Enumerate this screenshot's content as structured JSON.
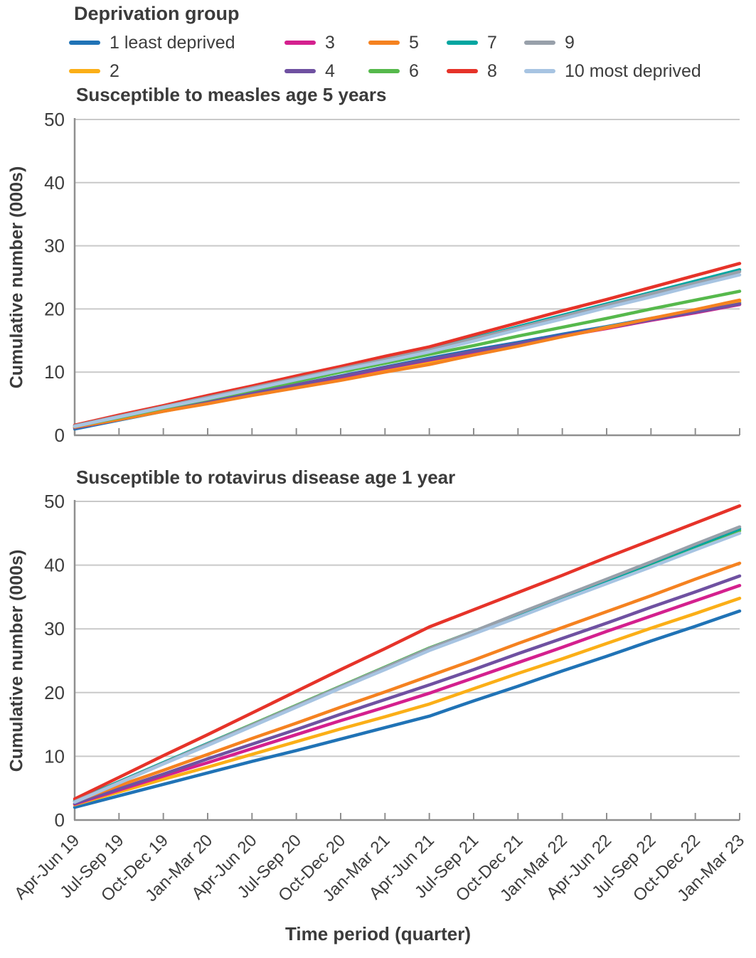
{
  "legend": {
    "title": "Deprivation group",
    "items": [
      {
        "label": "1 least deprived",
        "color": "#2073b6"
      },
      {
        "label": "2",
        "color": "#fbaf17"
      },
      {
        "label": "3",
        "color": "#d4208e"
      },
      {
        "label": "4",
        "color": "#6f51a1"
      },
      {
        "label": "5",
        "color": "#f58220"
      },
      {
        "label": "6",
        "color": "#56b94c"
      },
      {
        "label": "7",
        "color": "#00a5a0"
      },
      {
        "label": "8",
        "color": "#e63329"
      },
      {
        "label": "9",
        "color": "#98a0aa"
      },
      {
        "label": "10 most deprived",
        "color": "#a7c4e2"
      }
    ]
  },
  "x_axis_title": "Time period (quarter)",
  "styles": {
    "text_color": "#3d3d3d",
    "grid_color": "#c9c9c9",
    "axis_color": "#8f8f8f"
  },
  "chart_data": [
    {
      "type": "line",
      "title": "Susceptible to measles age 5 years",
      "ylabel": "Cumulative number (000s)",
      "xlabel": "Time period (quarter)",
      "ylim": [
        0,
        50
      ],
      "yticks": [
        0,
        10,
        20,
        30,
        40,
        50
      ],
      "grid": true,
      "legend_position": "top",
      "show_x_labels": false,
      "categories": [
        "Apr-Jun 19",
        "Jul-Sep 19",
        "Oct-Dec 19",
        "Jan-Mar 20",
        "Apr-Jun 20",
        "Jul-Sep 20",
        "Oct-Dec 20",
        "Jan-Mar 21",
        "Apr-Jun 21",
        "Jul-Sep 21",
        "Oct-Dec 21",
        "Jan-Mar 22",
        "Apr-Jun 22",
        "Jul-Sep 22",
        "Oct-Dec 22",
        "Jan-Mar 23"
      ],
      "series": [
        {
          "name": "1 least deprived",
          "color": "#2073b6",
          "values": [
            1.0,
            2.4,
            3.8,
            5.2,
            6.6,
            8.0,
            9.4,
            10.8,
            12.2,
            13.5,
            14.7,
            16.0,
            17.2,
            18.5,
            19.7,
            21.0
          ]
        },
        {
          "name": "2",
          "color": "#fbaf17",
          "values": [
            1.2,
            2.5,
            3.8,
            5.1,
            6.4,
            7.6,
            8.9,
            10.2,
            11.5,
            12.9,
            14.3,
            15.7,
            17.1,
            18.4,
            19.8,
            21.2
          ]
        },
        {
          "name": "3",
          "color": "#d4208e",
          "values": [
            1.2,
            2.5,
            3.9,
            5.2,
            6.6,
            7.9,
            9.2,
            10.6,
            11.9,
            13.2,
            14.4,
            15.7,
            16.9,
            18.2,
            19.4,
            20.7
          ]
        },
        {
          "name": "4",
          "color": "#6f51a1",
          "values": [
            1.2,
            2.6,
            3.9,
            5.3,
            6.6,
            8.0,
            9.3,
            10.7,
            12.0,
            13.3,
            14.5,
            15.8,
            17.0,
            18.3,
            19.5,
            20.8
          ]
        },
        {
          "name": "5",
          "color": "#f58220",
          "values": [
            1.3,
            2.5,
            3.8,
            5.0,
            6.3,
            7.5,
            8.7,
            10.0,
            11.2,
            12.7,
            14.1,
            15.6,
            17.0,
            18.5,
            19.9,
            21.4
          ]
        },
        {
          "name": "6",
          "color": "#56b94c",
          "values": [
            1.4,
            2.8,
            4.3,
            5.7,
            7.1,
            8.5,
            10.0,
            11.4,
            12.8,
            14.2,
            15.7,
            17.1,
            18.5,
            20.0,
            21.4,
            22.8
          ]
        },
        {
          "name": "7",
          "color": "#00a5a0",
          "values": [
            1.5,
            3.0,
            4.5,
            6.0,
            7.6,
            9.1,
            10.6,
            12.1,
            13.6,
            15.4,
            17.2,
            19.0,
            20.8,
            22.6,
            24.4,
            26.2
          ]
        },
        {
          "name": "8",
          "color": "#e63329",
          "values": [
            1.6,
            3.2,
            4.7,
            6.3,
            7.8,
            9.4,
            10.9,
            12.5,
            14.0,
            15.9,
            17.8,
            19.7,
            21.5,
            23.4,
            25.3,
            27.2
          ]
        },
        {
          "name": "9",
          "color": "#98a0aa",
          "values": [
            1.5,
            3.0,
            4.5,
            6.0,
            7.5,
            9.0,
            10.5,
            12.0,
            13.5,
            15.3,
            17.0,
            18.8,
            20.6,
            22.4,
            24.1,
            25.9
          ]
        },
        {
          "name": "10 most deprived",
          "color": "#a7c4e2",
          "values": [
            1.4,
            2.9,
            4.4,
            5.8,
            7.3,
            8.8,
            10.3,
            11.7,
            13.2,
            14.9,
            16.7,
            18.4,
            20.2,
            21.9,
            23.7,
            25.4
          ]
        }
      ]
    },
    {
      "type": "line",
      "title": "Susceptible to rotavirus disease age 1 year",
      "ylabel": "Cumulative number (000s)",
      "xlabel": "Time period (quarter)",
      "ylim": [
        0,
        50
      ],
      "yticks": [
        0,
        10,
        20,
        30,
        40,
        50
      ],
      "grid": true,
      "legend_position": "top",
      "show_x_labels": true,
      "categories": [
        "Apr-Jun 19",
        "Jul-Sep 19",
        "Oct-Dec 19",
        "Jan-Mar 20",
        "Apr-Jun 20",
        "Jul-Sep 20",
        "Oct-Dec 20",
        "Jan-Mar 21",
        "Apr-Jun 21",
        "Jul-Sep 21",
        "Oct-Dec 21",
        "Jan-Mar 22",
        "Apr-Jun 22",
        "Jul-Sep 22",
        "Oct-Dec 22",
        "Jan-Mar 23"
      ],
      "series": [
        {
          "name": "1 least deprived",
          "color": "#2073b6",
          "values": [
            2.0,
            3.8,
            5.6,
            7.4,
            9.2,
            10.9,
            12.7,
            14.5,
            16.3,
            18.7,
            21.0,
            23.4,
            25.7,
            28.1,
            30.4,
            32.8
          ]
        },
        {
          "name": "2",
          "color": "#fbaf17",
          "values": [
            2.4,
            4.4,
            6.4,
            8.3,
            10.3,
            12.3,
            14.3,
            16.2,
            18.2,
            20.6,
            23.0,
            25.3,
            27.7,
            30.1,
            32.4,
            34.8
          ]
        },
        {
          "name": "3",
          "color": "#d4208e",
          "values": [
            2.5,
            4.7,
            6.9,
            9.0,
            11.2,
            13.4,
            15.6,
            17.7,
            19.9,
            22.3,
            24.7,
            27.1,
            29.6,
            32.0,
            34.4,
            36.8
          ]
        },
        {
          "name": "4",
          "color": "#6f51a1",
          "values": [
            2.6,
            4.9,
            7.2,
            9.6,
            11.9,
            14.2,
            16.6,
            18.9,
            21.2,
            23.6,
            26.1,
            28.5,
            30.9,
            33.4,
            35.8,
            38.3
          ]
        },
        {
          "name": "5",
          "color": "#f58220",
          "values": [
            2.9,
            5.4,
            7.8,
            10.3,
            12.8,
            15.2,
            17.7,
            20.1,
            22.6,
            25.1,
            27.7,
            30.2,
            32.7,
            35.2,
            37.8,
            40.3
          ]
        },
        {
          "name": "6",
          "color": "#56b94c",
          "values": [
            3.0,
            6.0,
            9.0,
            12.0,
            15.0,
            18.0,
            21.0,
            24.0,
            27.0,
            29.6,
            32.3,
            34.9,
            37.5,
            40.1,
            42.8,
            45.4
          ]
        },
        {
          "name": "7",
          "color": "#00a5a0",
          "values": [
            3.0,
            6.0,
            9.0,
            12.0,
            14.9,
            17.9,
            20.9,
            23.9,
            26.9,
            29.6,
            32.3,
            35.0,
            37.6,
            40.3,
            43.0,
            45.7
          ]
        },
        {
          "name": "8",
          "color": "#e63329",
          "values": [
            3.3,
            6.7,
            10.1,
            13.4,
            16.8,
            20.2,
            23.6,
            26.9,
            30.3,
            33.0,
            35.7,
            38.4,
            41.2,
            43.9,
            46.6,
            49.3
          ]
        },
        {
          "name": "9",
          "color": "#98a0aa",
          "values": [
            2.9,
            5.9,
            8.9,
            11.9,
            14.9,
            17.9,
            20.9,
            23.9,
            26.9,
            29.6,
            32.4,
            35.1,
            37.8,
            40.5,
            43.3,
            46.0
          ]
        },
        {
          "name": "10 most deprived",
          "color": "#a7c4e2",
          "values": [
            2.8,
            5.8,
            8.8,
            11.7,
            14.7,
            17.7,
            20.7,
            23.6,
            26.6,
            29.2,
            31.8,
            34.5,
            37.1,
            39.7,
            42.4,
            45.0
          ]
        }
      ]
    }
  ]
}
